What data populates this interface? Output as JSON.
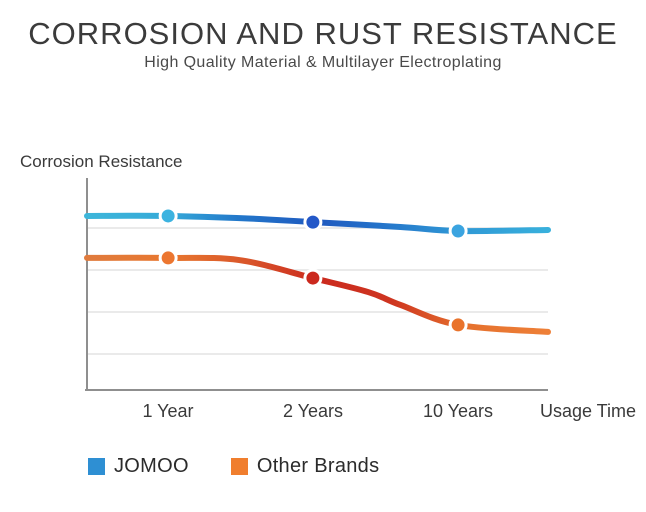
{
  "header": {
    "title": "CORROSION AND RUST RESISTANCE",
    "subtitle": "High Quality Material & Multilayer Electroplating"
  },
  "axis": {
    "y_label": "Corrosion Resistance",
    "x_label": "Usage Time"
  },
  "legend": {
    "items": [
      {
        "label": "JOMOO",
        "color": "#2e8fd3"
      },
      {
        "label": "Other Brands",
        "color": "#f07e2e"
      }
    ]
  },
  "chart_data": {
    "type": "line",
    "title": "CORROSION AND RUST RESISTANCE",
    "subtitle": "High Quality Material & Multilayer Electroplating",
    "xlabel": "Usage Time",
    "ylabel": "Corrosion Resistance",
    "categories": [
      "1 Year",
      "2 Years",
      "10 Years"
    ],
    "category_positions": [
      0.176,
      0.49,
      0.805
    ],
    "value_scale": "relative 0-100 (y axis unlabeled)",
    "ylim": [
      0,
      100
    ],
    "grid": true,
    "gridline_values": [
      17.0,
      36.8,
      56.6,
      76.4
    ],
    "legend_position": "bottom-left",
    "line_width": 6,
    "marker_radius": 8,
    "axis_color": "#8f8f8f",
    "grid_color": "#e4e4e4",
    "series": [
      {
        "name": "JOMOO",
        "color": "#2e8fd3",
        "values_at_categories": [
          82.1,
          79.2,
          75.0
        ],
        "end_value": 75.5,
        "points": [
          [
            0,
            82.1
          ],
          [
            0.176,
            82.1
          ],
          [
            0.35,
            80.9
          ],
          [
            0.49,
            79.2
          ],
          [
            0.68,
            76.9
          ],
          [
            0.805,
            75.0
          ],
          [
            1,
            75.5
          ]
        ],
        "marker_colors": [
          "#3cb3e0",
          "#2458c8",
          "#3ba4e0"
        ],
        "gradient": [
          [
            0,
            "#3db6da"
          ],
          [
            0.18,
            "#35a9d8"
          ],
          [
            0.33,
            "#2277ca"
          ],
          [
            0.5,
            "#2059bf"
          ],
          [
            0.63,
            "#2472c9"
          ],
          [
            0.8,
            "#2f97d5"
          ],
          [
            1,
            "#38b0dc"
          ]
        ]
      },
      {
        "name": "Other Brands",
        "color": "#f07e2e",
        "values_at_categories": [
          62.3,
          52.8,
          30.7
        ],
        "end_value": 27.4,
        "points": [
          [
            0,
            62.3
          ],
          [
            0.176,
            62.3
          ],
          [
            0.33,
            61.3
          ],
          [
            0.49,
            52.8
          ],
          [
            0.61,
            46.2
          ],
          [
            0.68,
            40.1
          ],
          [
            0.805,
            30.7
          ],
          [
            1,
            27.4
          ]
        ],
        "marker_colors": [
          "#ec7630",
          "#cb291e",
          "#e9732c"
        ],
        "gradient": [
          [
            0,
            "#e07b3d"
          ],
          [
            0.18,
            "#e8772f"
          ],
          [
            0.35,
            "#d9552a"
          ],
          [
            0.5,
            "#cb2a1e"
          ],
          [
            0.66,
            "#ce3520"
          ],
          [
            0.82,
            "#e5702d"
          ],
          [
            1,
            "#ee8038"
          ]
        ]
      }
    ]
  }
}
